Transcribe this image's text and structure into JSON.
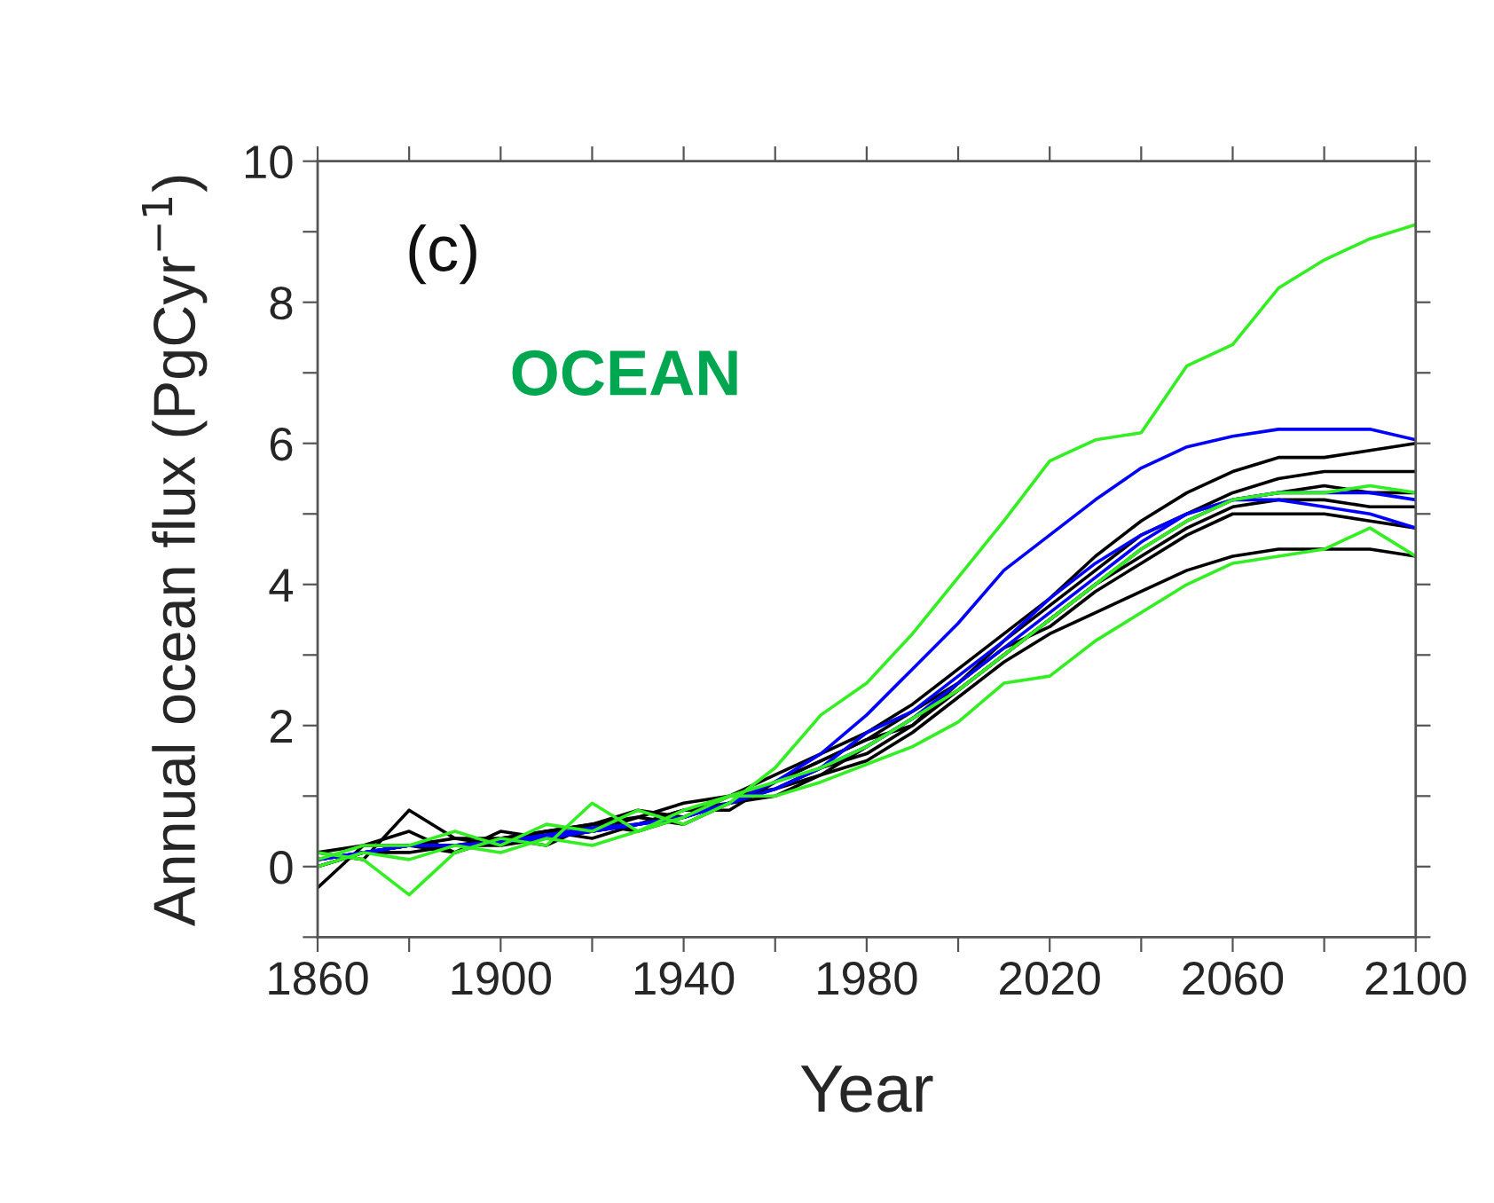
{
  "chart_data": {
    "type": "line",
    "xlabel": "Year",
    "ylabel": "Annual ocean flux (PgCyr$^{−1}$)",
    "annotations": [
      "(c)",
      "OCEAN"
    ],
    "x": [
      1860,
      1870,
      1880,
      1890,
      1900,
      1910,
      1920,
      1930,
      1940,
      1950,
      1960,
      1970,
      1980,
      1990,
      2000,
      2010,
      2020,
      2030,
      2040,
      2050,
      2060,
      2070,
      2080,
      2090,
      2100
    ],
    "series": [
      {
        "color": "#000000",
        "values": [
          -0.3,
          0.3,
          0.5,
          0.2,
          0.4,
          0.5,
          0.6,
          0.8,
          0.7,
          1.0,
          1.3,
          1.6,
          1.9,
          2.3,
          2.8,
          3.3,
          3.8,
          4.4,
          4.9,
          5.3,
          5.6,
          5.8,
          5.8,
          5.9,
          6.0
        ]
      },
      {
        "color": "#000000",
        "values": [
          0.0,
          0.2,
          0.3,
          0.3,
          0.3,
          0.4,
          0.5,
          0.6,
          0.8,
          0.9,
          1.2,
          1.5,
          1.8,
          2.2,
          2.6,
          3.2,
          3.7,
          4.2,
          4.7,
          5.0,
          5.3,
          5.5,
          5.6,
          5.6,
          5.6
        ]
      },
      {
        "color": "#000000",
        "values": [
          0.2,
          0.1,
          0.8,
          0.4,
          0.3,
          0.5,
          0.6,
          0.7,
          0.9,
          1.0,
          1.1,
          1.4,
          1.6,
          2.0,
          2.5,
          3.0,
          3.5,
          4.0,
          4.5,
          4.9,
          5.2,
          5.3,
          5.4,
          5.3,
          5.3
        ]
      },
      {
        "color": "#000000",
        "values": [
          0.1,
          0.2,
          0.2,
          0.3,
          0.4,
          0.3,
          0.6,
          0.5,
          0.7,
          0.9,
          1.1,
          1.3,
          1.7,
          2.1,
          2.5,
          3.0,
          3.5,
          4.0,
          4.4,
          4.8,
          5.1,
          5.2,
          5.2,
          5.1,
          5.1
        ]
      },
      {
        "color": "#000000",
        "values": [
          0.2,
          0.3,
          0.3,
          0.4,
          0.4,
          0.5,
          0.4,
          0.6,
          0.8,
          0.8,
          1.2,
          1.5,
          1.8,
          2.0,
          2.6,
          3.1,
          3.4,
          3.9,
          4.3,
          4.7,
          5.0,
          5.0,
          5.0,
          4.9,
          4.8
        ]
      },
      {
        "color": "#000000",
        "values": [
          0.0,
          0.2,
          0.3,
          0.2,
          0.5,
          0.4,
          0.5,
          0.7,
          0.6,
          0.9,
          1.0,
          1.3,
          1.5,
          1.9,
          2.4,
          2.9,
          3.3,
          3.6,
          3.9,
          4.2,
          4.4,
          4.5,
          4.5,
          4.5,
          4.4
        ]
      },
      {
        "color": "#0000ff",
        "values": [
          0.1,
          0.2,
          0.3,
          0.3,
          0.35,
          0.45,
          0.55,
          0.6,
          0.7,
          0.9,
          1.2,
          1.6,
          2.15,
          2.8,
          3.45,
          4.2,
          4.7,
          5.2,
          5.65,
          5.95,
          6.1,
          6.2,
          6.2,
          6.2,
          6.05
        ]
      },
      {
        "color": "#0000ff",
        "values": [
          0.1,
          0.2,
          0.3,
          0.3,
          0.35,
          0.45,
          0.5,
          0.6,
          0.7,
          0.9,
          1.1,
          1.4,
          1.9,
          2.2,
          2.7,
          3.2,
          3.8,
          4.3,
          4.7,
          5.0,
          5.2,
          5.2,
          5.1,
          5.0,
          4.8
        ]
      },
      {
        "color": "#0000ff",
        "values": [
          0.1,
          0.2,
          0.3,
          0.3,
          0.35,
          0.4,
          0.5,
          0.6,
          0.7,
          0.9,
          1.1,
          1.4,
          1.7,
          2.1,
          2.6,
          3.1,
          3.6,
          4.1,
          4.6,
          5.0,
          5.2,
          5.3,
          5.3,
          5.3,
          5.2
        ]
      },
      {
        "color": "#33ee22",
        "values": [
          0.1,
          0.3,
          0.3,
          0.5,
          0.3,
          0.6,
          0.5,
          0.8,
          0.6,
          0.9,
          1.4,
          2.15,
          2.6,
          3.3,
          4.1,
          4.9,
          5.75,
          6.05,
          6.15,
          7.1,
          7.4,
          8.2,
          8.6,
          8.9,
          9.1
        ]
      },
      {
        "color": "#33ee22",
        "values": [
          0.2,
          0.1,
          -0.4,
          0.2,
          0.4,
          0.3,
          0.9,
          0.5,
          0.7,
          1.0,
          1.0,
          1.2,
          1.45,
          1.7,
          2.05,
          2.6,
          2.7,
          3.2,
          3.6,
          4.0,
          4.3,
          4.4,
          4.5,
          4.8,
          4.4
        ]
      },
      {
        "color": "#33ee22",
        "values": [
          0.0,
          0.2,
          0.1,
          0.3,
          0.2,
          0.4,
          0.3,
          0.5,
          0.8,
          1.0,
          1.2,
          1.4,
          1.7,
          2.1,
          2.5,
          3.0,
          3.5,
          4.0,
          4.5,
          4.9,
          5.2,
          5.3,
          5.3,
          5.4,
          5.3
        ]
      }
    ],
    "xlim": [
      1860,
      2100
    ],
    "xticks": [
      1860,
      {
        "value": 1880,
        "label": null
      },
      1900,
      {
        "value": 1920,
        "label": null
      },
      1940,
      {
        "value": 1960,
        "label": null
      },
      1980,
      {
        "value": 2000,
        "label": null
      },
      2020,
      {
        "value": 2040,
        "label": null
      },
      2060,
      {
        "value": 2080,
        "label": null
      },
      2100
    ],
    "ylim": [
      -1,
      10
    ],
    "yticks": [
      {
        "value": -1,
        "label": null
      },
      0,
      {
        "value": 1,
        "label": null
      },
      2,
      {
        "value": 3,
        "label": null
      },
      4,
      {
        "value": 5,
        "label": null
      },
      6,
      {
        "value": 7,
        "label": null
      },
      8,
      {
        "value": 9,
        "label": null
      },
      10
    ],
    "grid": false,
    "legend": false,
    "marker": "none",
    "line_style": "solid"
  }
}
